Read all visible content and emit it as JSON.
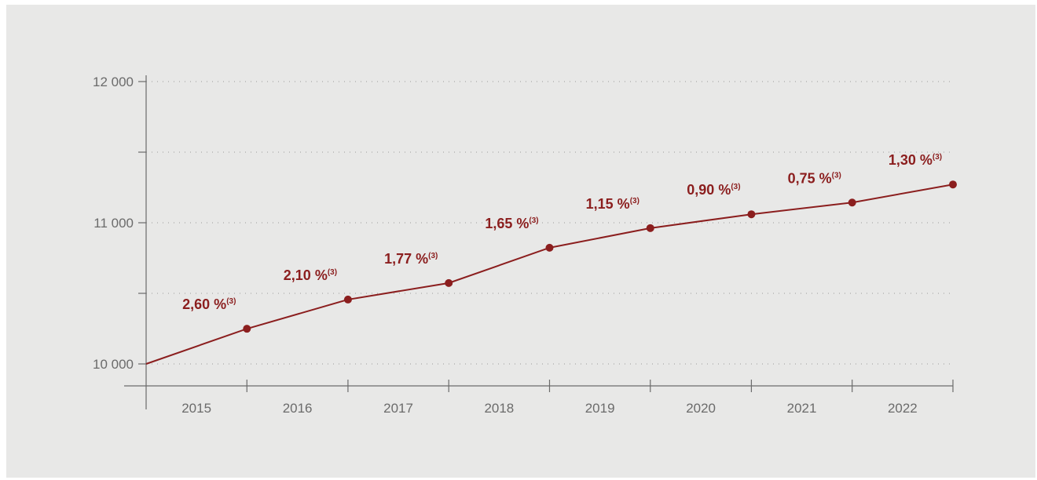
{
  "colors": {
    "series": "#8b1e1e",
    "axis": "#6b6b6b",
    "grid": "#9a9a9a",
    "background": "#e8e8e7"
  },
  "chart_data": {
    "type": "line",
    "title": "",
    "xlabel": "",
    "ylabel": "",
    "ylim": [
      10000,
      12000
    ],
    "y_ticks": [
      10000,
      11000,
      12000
    ],
    "y_tick_labels": [
      "10 000",
      "11 000",
      "12 000"
    ],
    "y_minor_ticks": [
      10500,
      11500
    ],
    "grid": true,
    "x_tick_labels": [
      "2015",
      "2016",
      "2017",
      "2018",
      "2019",
      "2020",
      "2021",
      "2022"
    ],
    "x": [
      "2015-01-01",
      "2016-01-01",
      "2017-01-01",
      "2018-01-01",
      "2019-01-01",
      "2020-01-01",
      "2021-01-01",
      "2022-01-01",
      "2023-01-01"
    ],
    "series": [
      {
        "values": [
          10000,
          10249,
          10456,
          10573,
          10823,
          10962,
          11060,
          11143,
          11271
        ],
        "point_labels": [
          "",
          "2,60 %",
          "2,10 %",
          "1,77 %",
          "1,65 %",
          "1,15 %",
          "0,90 %",
          "0,75 %",
          "1,30 %"
        ],
        "point_label_note": "(3)"
      }
    ]
  }
}
